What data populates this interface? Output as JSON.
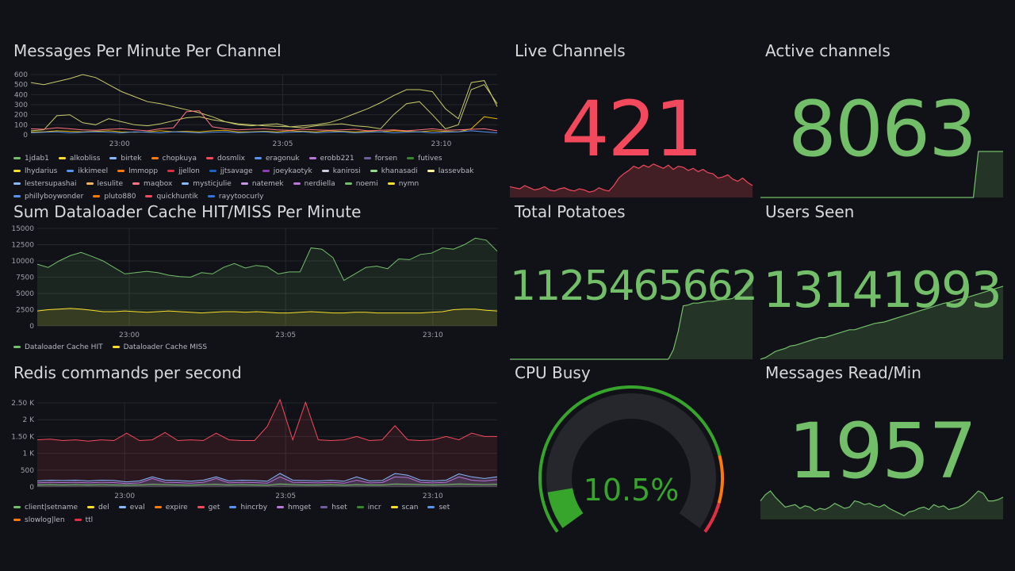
{
  "colors": {
    "green": "#73bf69",
    "red": "#f2495c",
    "yellow": "#fade2a",
    "bg": "#111217",
    "grid": "#25272d",
    "axis": "#9fa0a8"
  },
  "panels": {
    "messages": {
      "title": "Messages Per Minute Per Channel",
      "chart_data": {
        "type": "line",
        "title": "Messages Per Minute Per Channel",
        "ylim": [
          0,
          600
        ],
        "y_ticks": [
          "600",
          "500",
          "400",
          "300",
          "200",
          "100",
          "0"
        ],
        "x_ticks": [
          "23:00",
          "23:05",
          "23:10"
        ],
        "series": [
          {
            "name": "alkobliss",
            "color": "#c8c96a",
            "values": [
              520,
              500,
              530,
              560,
              600,
              570,
              500,
              430,
              380,
              330,
              310,
              280,
              250,
              220,
              180,
              130,
              110,
              100,
              90,
              85,
              80,
              90,
              100,
              120,
              160,
              210,
              260,
              320,
              390,
              450,
              450,
              430,
              260,
              160,
              520,
              540,
              280
            ]
          },
          {
            "name": "1jdab1",
            "color": "#c8c96a",
            "values": [
              40,
              50,
              190,
              200,
              120,
              100,
              160,
              130,
              100,
              90,
              110,
              140,
              170,
              180,
              150,
              130,
              100,
              90,
              100,
              110,
              80,
              70,
              90,
              100,
              110,
              90,
              80,
              60,
              200,
              310,
              330,
              200,
              60,
              100,
              450,
              500,
              310
            ]
          },
          {
            "name": "birtek",
            "color": "#e0b400",
            "values": [
              30,
              30,
              40,
              35,
              30,
              35,
              40,
              30,
              25,
              30,
              40,
              30,
              35,
              30,
              40,
              45,
              30,
              30,
              35,
              30,
              40,
              35,
              30,
              40,
              35,
              30,
              35,
              30,
              40,
              35,
              30,
              40,
              35,
              30,
              60,
              180,
              160
            ]
          },
          {
            "name": "chopkuya",
            "color": "#ff7383",
            "values": [
              60,
              55,
              70,
              60,
              50,
              45,
              55,
              60,
              50,
              40,
              60,
              70,
              230,
              240,
              80,
              60,
              50,
              55,
              60,
              50,
              45,
              55,
              50,
              45,
              50,
              55,
              40,
              45,
              50,
              40,
              50,
              60,
              45,
              50,
              55,
              60,
              40
            ]
          },
          {
            "name": "eragonuk",
            "color": "#5794f2",
            "values": [
              20,
              25,
              30,
              20,
              25,
              30,
              25,
              20,
              30,
              25,
              20,
              30,
              25,
              20,
              25,
              30,
              20,
              25,
              30,
              20,
              25,
              30,
              20,
              25,
              30,
              20,
              25,
              30,
              20,
              25,
              30,
              20,
              25,
              30,
              40,
              30,
              20
            ]
          }
        ]
      },
      "legend": [
        {
          "name": "1jdab1",
          "color": "#73bf69"
        },
        {
          "name": "alkobliss",
          "color": "#fade2a"
        },
        {
          "name": "birtek",
          "color": "#8ab8ff"
        },
        {
          "name": "chopkuya",
          "color": "#ff780a"
        },
        {
          "name": "dosmlix",
          "color": "#f2495c"
        },
        {
          "name": "eragonuk",
          "color": "#5794f2"
        },
        {
          "name": "erobb221",
          "color": "#b877d9"
        },
        {
          "name": "forsen",
          "color": "#705da0"
        },
        {
          "name": "futives",
          "color": "#37872d"
        },
        {
          "name": "lhydarius",
          "color": "#fade2a"
        },
        {
          "name": "ikkimeel",
          "color": "#5794f2"
        },
        {
          "name": "lmmopp",
          "color": "#ff780a"
        },
        {
          "name": "jjellon",
          "color": "#e02f44"
        },
        {
          "name": "jjtsavage",
          "color": "#1f60c4"
        },
        {
          "name": "joeykaotyk",
          "color": "#8f3bb8"
        },
        {
          "name": "kanirosi",
          "color": "#ccccdc"
        },
        {
          "name": "khanasadi",
          "color": "#96d98d"
        },
        {
          "name": "lassevbak",
          "color": "#fff899"
        },
        {
          "name": "lestersupashai",
          "color": "#8ab8ff"
        },
        {
          "name": "lesulite",
          "color": "#ffb357"
        },
        {
          "name": "maqbox",
          "color": "#ff7383"
        },
        {
          "name": "mysticjulie",
          "color": "#8ab8ff"
        },
        {
          "name": "natemek",
          "color": "#ca95e5"
        },
        {
          "name": "nerdiella",
          "color": "#b877d9"
        },
        {
          "name": "noemi",
          "color": "#73bf69"
        },
        {
          "name": "nymn",
          "color": "#fade2a"
        },
        {
          "name": "phillyboywonder",
          "color": "#5794f2"
        },
        {
          "name": "pluto880",
          "color": "#ff780a"
        },
        {
          "name": "quickhuntik",
          "color": "#f2495c"
        },
        {
          "name": "rayytoocurly",
          "color": "#3274d9"
        }
      ]
    },
    "dataloader": {
      "title": "Sum Dataloader Cache HIT/MISS Per Minute",
      "chart_data": {
        "type": "area",
        "title": "Sum Dataloader Cache HIT/MISS Per Minute",
        "ylim": [
          0,
          15000
        ],
        "y_ticks": [
          "15000",
          "12500",
          "10000",
          "7500",
          "5000",
          "2500",
          "0"
        ],
        "x_ticks": [
          "23:00",
          "23:05",
          "23:10"
        ],
        "series": [
          {
            "name": "Dataloader Cache HIT",
            "color": "#73bf69",
            "values": [
              9500,
              9000,
              10000,
              10800,
              11300,
              10700,
              10000,
              9000,
              8000,
              8200,
              8400,
              8200,
              7800,
              7600,
              7500,
              8200,
              8000,
              9000,
              9600,
              8900,
              9300,
              9100,
              8000,
              8300,
              8300,
              12000,
              11800,
              10500,
              7000,
              8000,
              9000,
              9200,
              8800,
              10300,
              10200,
              11000,
              11200,
              12000,
              11800,
              12500,
              13500,
              13200,
              11500
            ]
          },
          {
            "name": "Dataloader Cache MISS",
            "color": "#fade2a",
            "values": [
              2300,
              2500,
              2600,
              2700,
              2600,
              2400,
              2200,
              2200,
              2300,
              2200,
              2100,
              2200,
              2300,
              2200,
              2100,
              2000,
              2100,
              2200,
              2200,
              2100,
              2200,
              2100,
              2000,
              2000,
              2100,
              2200,
              2100,
              2000,
              2000,
              2100,
              2100,
              2000,
              2000,
              2000,
              2000,
              2000,
              2100,
              2200,
              2500,
              2600,
              2600,
              2400,
              2300
            ]
          }
        ]
      },
      "legend": [
        {
          "name": "Dataloader Cache HIT",
          "color": "#73bf69"
        },
        {
          "name": "Dataloader Cache MISS",
          "color": "#fade2a"
        }
      ]
    },
    "redis": {
      "title": "Redis commands per second",
      "chart_data": {
        "type": "area",
        "title": "Redis commands per second",
        "ylim": [
          0,
          2500
        ],
        "y_ticks": [
          "2.50 K",
          "2 K",
          "1.50 K",
          "1 K",
          "500",
          "0"
        ],
        "x_ticks": [
          "23:00",
          "23:05",
          "23:10"
        ],
        "series": [
          {
            "name": "get",
            "color": "#f2495c",
            "values": [
              1400,
              1420,
              1380,
              1400,
              1360,
              1400,
              1380,
              1600,
              1380,
              1400,
              1620,
              1380,
              1400,
              1380,
              1600,
              1400,
              1380,
              1380,
              1800,
              2600,
              1400,
              2520,
              1400,
              1380,
              1400,
              1500,
              1380,
              1400,
              1820,
              1400,
              1380,
              1400,
              1500,
              1400,
              1600,
              1500,
              1500
            ]
          },
          {
            "name": "hmget",
            "color": "#8ab8ff",
            "values": [
              180,
              200,
              190,
              200,
              180,
              200,
              190,
              150,
              180,
              300,
              200,
              190,
              170,
              200,
              300,
              180,
              200,
              190,
              170,
              400,
              200,
              190,
              180,
              200,
              170,
              300,
              180,
              190,
              400,
              350,
              200,
              180,
              200,
              390,
              300,
              250,
              300
            ]
          },
          {
            "name": "hincrby",
            "color": "#b877d9",
            "values": [
              120,
              140,
              130,
              140,
              120,
              140,
              130,
              100,
              120,
              250,
              140,
              130,
              110,
              140,
              250,
              120,
              140,
              130,
              110,
              300,
              140,
              130,
              120,
              140,
              110,
              200,
              120,
              130,
              300,
              280,
              140,
              120,
              140,
              300,
              200,
              180,
              220
            ]
          },
          {
            "name": "incr",
            "color": "#73bf69",
            "values": [
              60,
              70,
              60,
              70,
              60,
              70,
              60,
              50,
              60,
              80,
              70,
              60,
              50,
              70,
              80,
              60,
              70,
              60,
              50,
              90,
              70,
              60,
              60,
              70,
              50,
              70,
              60,
              60,
              90,
              80,
              70,
              60,
              70,
              90,
              80,
              70,
              80
            ]
          }
        ]
      },
      "legend": [
        {
          "name": "client|setname",
          "color": "#73bf69"
        },
        {
          "name": "del",
          "color": "#fade2a"
        },
        {
          "name": "eval",
          "color": "#8ab8ff"
        },
        {
          "name": "expire",
          "color": "#ff780a"
        },
        {
          "name": "get",
          "color": "#f2495c"
        },
        {
          "name": "hincrby",
          "color": "#5794f2"
        },
        {
          "name": "hmget",
          "color": "#b877d9"
        },
        {
          "name": "hset",
          "color": "#705da0"
        },
        {
          "name": "incr",
          "color": "#37872d"
        },
        {
          "name": "scan",
          "color": "#fade2a"
        },
        {
          "name": "set",
          "color": "#5794f2"
        },
        {
          "name": "slowlog|len",
          "color": "#ff780a"
        },
        {
          "name": "ttl",
          "color": "#e02f44"
        }
      ]
    },
    "live": {
      "title": "Live Channels",
      "value": "421",
      "color": "#f2495c",
      "spark": [
        20,
        18,
        16,
        22,
        18,
        14,
        16,
        20,
        14,
        12,
        16,
        18,
        14,
        12,
        16,
        14,
        10,
        12,
        18,
        14,
        12,
        22,
        36,
        44,
        50,
        58,
        54,
        60,
        56,
        62,
        58,
        54,
        60,
        52,
        58,
        56,
        50,
        54,
        48,
        52,
        46,
        44,
        36,
        38,
        42,
        34,
        30,
        36,
        28,
        22
      ]
    },
    "active": {
      "title": "Active channels",
      "value": "8063",
      "color": "#73bf69",
      "spark": [
        0,
        0,
        0,
        0,
        0,
        0,
        0,
        0,
        0,
        0,
        0,
        0,
        0,
        0,
        0,
        0,
        0,
        0,
        0,
        0,
        0,
        0,
        0,
        0,
        0,
        0,
        0,
        0,
        0,
        0,
        0,
        0,
        0,
        0,
        0,
        0,
        0,
        0,
        0,
        0,
        0,
        0,
        0,
        0,
        100,
        100,
        100,
        100,
        100,
        100
      ]
    },
    "potatoes": {
      "title": "Total Potatoes",
      "value": "1125465662",
      "color": "#73bf69",
      "spark": [
        0,
        0,
        0,
        0,
        0,
        0,
        0,
        0,
        0,
        0,
        0,
        0,
        0,
        0,
        0,
        0,
        0,
        0,
        0,
        0,
        0,
        0,
        0,
        0,
        0,
        0,
        0,
        0,
        0,
        0,
        0,
        0,
        0,
        10,
        30,
        57,
        58,
        60,
        60,
        61,
        62,
        62,
        63,
        64,
        64,
        65,
        70,
        75,
        83,
        90
      ]
    },
    "users": {
      "title": "Users Seen",
      "value": "13141993",
      "color": "#73bf69",
      "spark": [
        0,
        2,
        6,
        10,
        12,
        14,
        17,
        18,
        20,
        22,
        24,
        26,
        28,
        28,
        30,
        32,
        34,
        36,
        38,
        38,
        40,
        42,
        44,
        46,
        47,
        48,
        50,
        52,
        54,
        56,
        58,
        60,
        62,
        64,
        66,
        68,
        70,
        72,
        73,
        75,
        77,
        78,
        80,
        82,
        84,
        86,
        88,
        90,
        92,
        94
      ]
    },
    "cpu": {
      "title": "CPU Busy",
      "value_text": "10.5%",
      "percent": 10.5,
      "color": "#37a42c"
    },
    "msgread": {
      "title": "Messages Read/Min",
      "value": "1957",
      "color": "#73bf69",
      "spark": [
        30,
        40,
        46,
        36,
        28,
        20,
        22,
        24,
        18,
        22,
        20,
        14,
        18,
        16,
        20,
        26,
        22,
        18,
        20,
        30,
        28,
        24,
        26,
        22,
        20,
        24,
        18,
        14,
        10,
        6,
        12,
        14,
        18,
        20,
        16,
        24,
        20,
        22,
        16,
        18,
        20,
        24,
        30,
        38,
        46,
        42,
        30,
        30,
        32,
        36
      ]
    }
  }
}
